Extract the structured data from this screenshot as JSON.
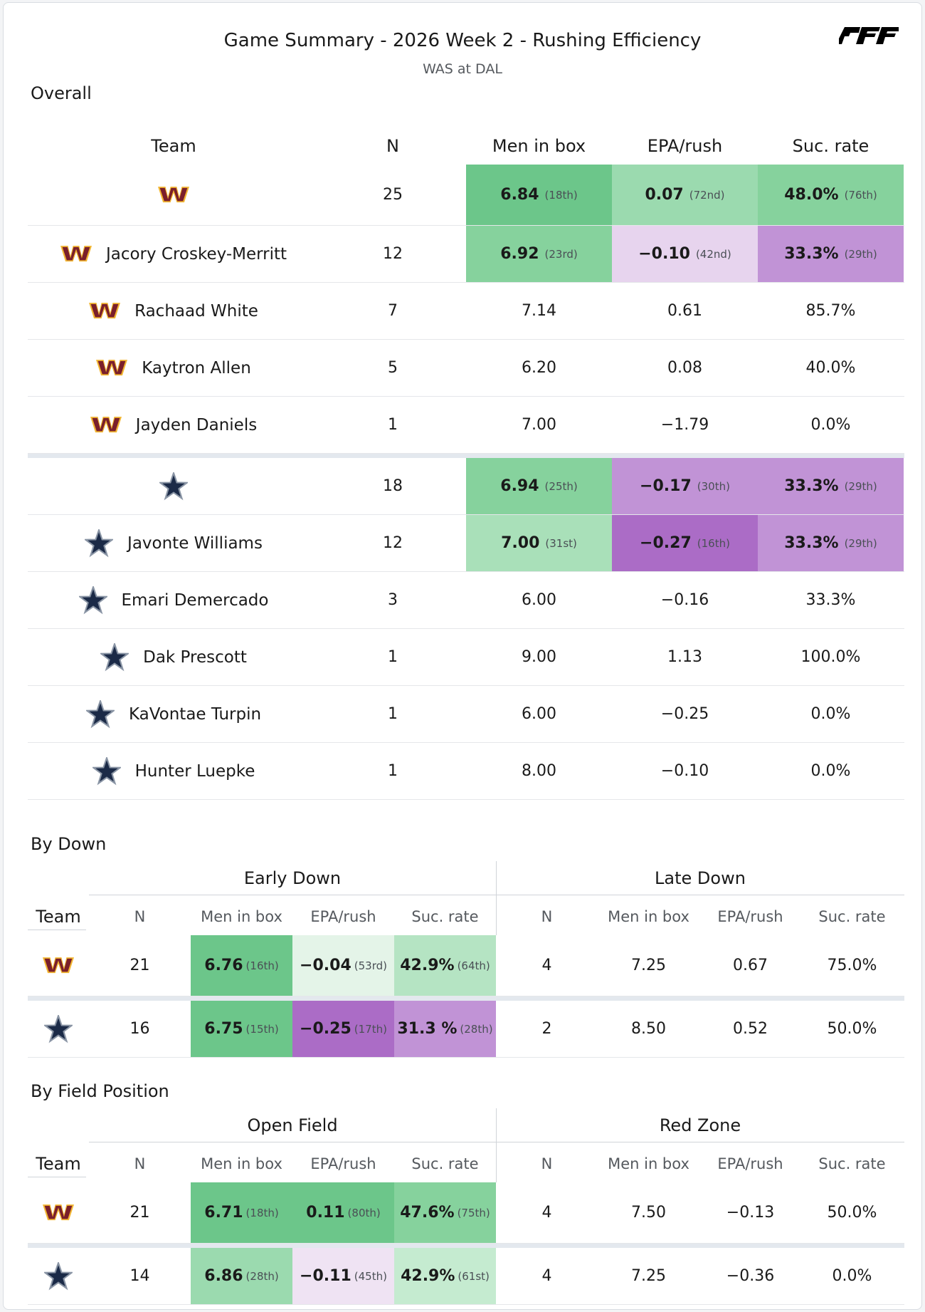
{
  "header": {
    "title": "Game Summary - 2026 Week 2 - Rushing Efficiency",
    "subtitle": "WAS at DAL",
    "brand": "PFF"
  },
  "colors": {
    "green_dark": "#6cc68a",
    "green_mid": "#86d29d",
    "green_light": "#a9e0b9",
    "green_pale": "#c5ebd0",
    "green_faint": "#e4f4e8",
    "purple_dark": "#ab6cc6",
    "purple_mid": "#c193d6",
    "purple_light": "#d6b6e3",
    "purple_pale": "#e7d4ee",
    "purple_faint": "#efe3f3",
    "was_logo": "#7a1f2b",
    "was_gold": "#f2b632",
    "dal_star": "#1b2a47"
  },
  "overall": {
    "section": "Overall",
    "columns": [
      "Team",
      "N",
      "Men in box",
      "EPA/rush",
      "Suc. rate"
    ],
    "rows": [
      {
        "team": "WAS",
        "name": "",
        "n": "25",
        "men": "6.84",
        "men_rank": "(18th)",
        "epa": "0.07",
        "epa_rank": "(72nd)",
        "suc": "48.0%",
        "suc_rank": "(76th)",
        "colors": [
          "#6cc68a",
          "#9bdaaf",
          "#86d29d"
        ]
      },
      {
        "team": "WAS",
        "name": "Jacory Croskey-Merritt",
        "n": "12",
        "men": "6.92",
        "men_rank": "(23rd)",
        "epa": "−0.10",
        "epa_rank": "(42nd)",
        "suc": "33.3%",
        "suc_rank": "(29th)",
        "colors": [
          "#86d29d",
          "#e7d4ee",
          "#c193d6"
        ]
      },
      {
        "team": "WAS",
        "name": "Rachaad White",
        "n": "7",
        "men": "7.14",
        "men_rank": "",
        "epa": "0.61",
        "epa_rank": "",
        "suc": "85.7%",
        "suc_rank": ""
      },
      {
        "team": "WAS",
        "name": "Kaytron Allen",
        "n": "5",
        "men": "6.20",
        "men_rank": "",
        "epa": "0.08",
        "epa_rank": "",
        "suc": "40.0%",
        "suc_rank": ""
      },
      {
        "team": "WAS",
        "name": "Jayden Daniels",
        "n": "1",
        "men": "7.00",
        "men_rank": "",
        "epa": "−1.79",
        "epa_rank": "",
        "suc": "0.0%",
        "suc_rank": ""
      },
      {
        "team": "DAL",
        "name": "",
        "n": "18",
        "men": "6.94",
        "men_rank": "(25th)",
        "epa": "−0.17",
        "epa_rank": "(30th)",
        "suc": "33.3%",
        "suc_rank": "(29th)",
        "colors": [
          "#86d29d",
          "#c193d6",
          "#c193d6"
        ]
      },
      {
        "team": "DAL",
        "name": "Javonte Williams",
        "n": "12",
        "men": "7.00",
        "men_rank": "(31st)",
        "epa": "−0.27",
        "epa_rank": "(16th)",
        "suc": "33.3%",
        "suc_rank": "(29th)",
        "colors": [
          "#a9e0b9",
          "#ab6cc6",
          "#c193d6"
        ]
      },
      {
        "team": "DAL",
        "name": "Emari Demercado",
        "n": "3",
        "men": "6.00",
        "men_rank": "",
        "epa": "−0.16",
        "epa_rank": "",
        "suc": "33.3%",
        "suc_rank": ""
      },
      {
        "team": "DAL",
        "name": "Dak Prescott",
        "n": "1",
        "men": "9.00",
        "men_rank": "",
        "epa": "1.13",
        "epa_rank": "",
        "suc": "100.0%",
        "suc_rank": ""
      },
      {
        "team": "DAL",
        "name": "KaVontae Turpin",
        "n": "1",
        "men": "6.00",
        "men_rank": "",
        "epa": "−0.25",
        "epa_rank": "",
        "suc": "0.0%",
        "suc_rank": ""
      },
      {
        "team": "DAL",
        "name": "Hunter Luepke",
        "n": "1",
        "men": "8.00",
        "men_rank": "",
        "epa": "−0.10",
        "epa_rank": "",
        "suc": "0.0%",
        "suc_rank": ""
      }
    ]
  },
  "by_down": {
    "section": "By Down",
    "group_left": "Early Down",
    "group_right": "Late Down",
    "columns": [
      "Team",
      "N",
      "Men in box",
      "EPA/rush",
      "Suc. rate",
      "N",
      "Men in box",
      "EPA/rush",
      "Suc. rate"
    ],
    "rows": [
      {
        "team": "WAS",
        "n": "21",
        "men": "6.76",
        "men_rank": "(16th)",
        "epa": "−0.04",
        "epa_rank": "(53rd)",
        "suc": "42.9%",
        "suc_rank": "(64th)",
        "n2": "4",
        "men2": "7.25",
        "epa2": "0.67",
        "suc2": "75.0%",
        "colors": [
          "#6cc68a",
          "#e4f4e8",
          "#b5e4c3"
        ]
      },
      {
        "team": "DAL",
        "n": "16",
        "men": "6.75",
        "men_rank": "(15th)",
        "epa": "−0.25",
        "epa_rank": "(17th)",
        "suc": "31.3 %",
        "suc_rank": "(28th)",
        "n2": "2",
        "men2": "8.50",
        "epa2": "0.52",
        "suc2": "50.0%",
        "colors": [
          "#6cc68a",
          "#ab6cc6",
          "#c193d6"
        ]
      }
    ]
  },
  "by_field": {
    "section": "By Field Position",
    "group_left": "Open Field",
    "group_right": "Red Zone",
    "columns": [
      "Team",
      "N",
      "Men in box",
      "EPA/rush",
      "Suc. rate",
      "N",
      "Men in box",
      "EPA/rush",
      "Suc. rate"
    ],
    "rows": [
      {
        "team": "WAS",
        "n": "21",
        "men": "6.71",
        "men_rank": "(18th)",
        "epa": "0.11",
        "epa_rank": "(80th)",
        "suc": "47.6%",
        "suc_rank": "(75th)",
        "n2": "4",
        "men2": "7.50",
        "epa2": "−0.13",
        "suc2": "50.0%",
        "colors": [
          "#6cc68a",
          "#6cc68a",
          "#86d29d"
        ]
      },
      {
        "team": "DAL",
        "n": "14",
        "men": "6.86",
        "men_rank": "(28th)",
        "epa": "−0.11",
        "epa_rank": "(45th)",
        "suc": "42.9%",
        "suc_rank": "(61st)",
        "n2": "4",
        "men2": "7.25",
        "epa2": "−0.36",
        "suc2": "0.0%",
        "colors": [
          "#9bdaaf",
          "#efe3f3",
          "#c5ebd0"
        ]
      }
    ]
  },
  "chart_data": {
    "type": "table",
    "title": "Game Summary - 2026 Week 2 - Rushing Efficiency",
    "subtitle": "WAS at DAL"
  }
}
